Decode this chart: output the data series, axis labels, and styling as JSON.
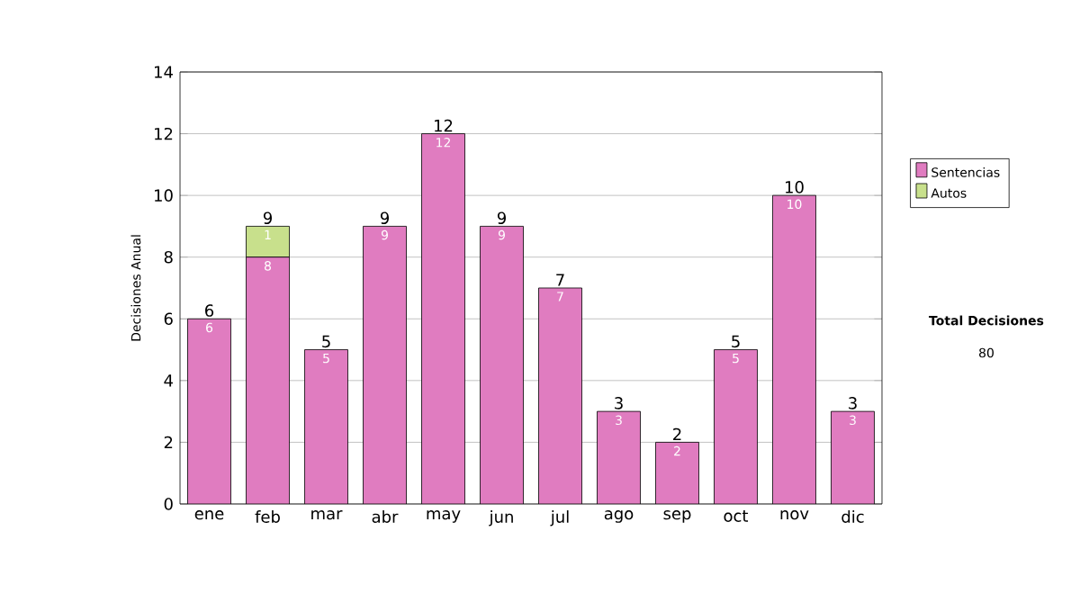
{
  "chart_data": {
    "type": "bar",
    "stacked": true,
    "ylabel": "Decisiones Anual",
    "categories": [
      "ene",
      "feb",
      "mar",
      "abr",
      "may",
      "jun",
      "jul",
      "ago",
      "sep",
      "oct",
      "nov",
      "dic"
    ],
    "series": [
      {
        "name": "Sentencias",
        "color": "#e07cc0",
        "values": [
          6,
          8,
          5,
          9,
          12,
          9,
          7,
          3,
          2,
          5,
          10,
          3
        ],
        "value_labels": [
          "6",
          "8",
          "5",
          "9",
          "12",
          "9",
          "7",
          "3",
          "2",
          "5",
          "10",
          "3"
        ]
      },
      {
        "name": "Autos",
        "color": "#c8e08c",
        "values": [
          0,
          1,
          0,
          0,
          0,
          0,
          0,
          0,
          0,
          0,
          0,
          0
        ],
        "value_labels": [
          null,
          "1",
          null,
          null,
          null,
          null,
          null,
          null,
          null,
          null,
          null,
          null
        ]
      }
    ],
    "totals": [
      "6",
      "9",
      "5",
      "9",
      "12",
      "9",
      "7",
      "3",
      "2",
      "5",
      "10",
      "3"
    ],
    "ylim": [
      0,
      14
    ],
    "yticks": [
      0,
      2,
      4,
      6,
      8,
      10,
      12,
      14
    ],
    "grid": "y",
    "legend": "right",
    "annotations": [
      "**Total Decisiones**",
      "80"
    ]
  }
}
